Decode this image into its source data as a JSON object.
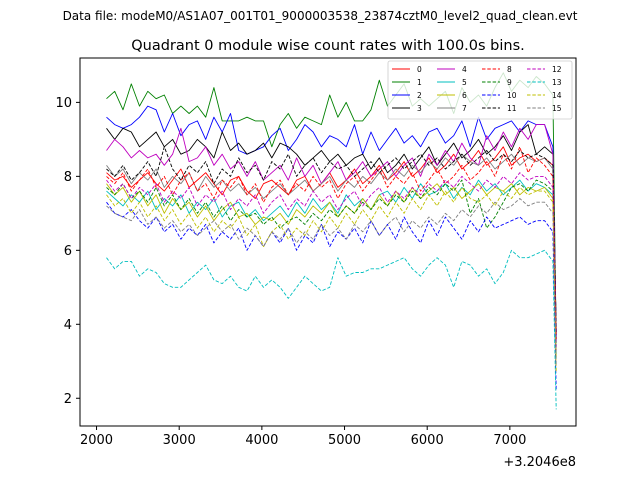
{
  "figure": {
    "suptitle": "Data file: modeM0/AS1A07_001T01_9000003538_23874cztM0_level2_quad_clean.evt",
    "title": "Quadrant 0 module wise count rates with 100.0s bins.",
    "offset_label": "+3.2046e8"
  },
  "chart_data": {
    "type": "line",
    "title": "Quadrant 0 module wise count rates with 100.0s bins.",
    "xlabel": "",
    "ylabel": "",
    "x_offset": 320460000,
    "xlim": [
      1800,
      7800
    ],
    "ylim": [
      1.25,
      11.2
    ],
    "xticks": [
      2000,
      3000,
      4000,
      5000,
      6000,
      7000
    ],
    "xtick_labels": [
      "2000",
      "3000",
      "4000",
      "5000",
      "6000",
      "7000"
    ],
    "yticks": [
      2,
      4,
      6,
      8,
      10
    ],
    "ytick_labels": [
      "2",
      "4",
      "6",
      "8",
      "10"
    ],
    "grid": false,
    "legend_position": "top-right",
    "x": [
      2120,
      2220,
      2320,
      2420,
      2520,
      2620,
      2720,
      2820,
      2920,
      3020,
      3120,
      3220,
      3320,
      3420,
      3520,
      3620,
      3720,
      3820,
      3920,
      4020,
      4120,
      4220,
      4320,
      4420,
      4520,
      4620,
      4720,
      4820,
      4920,
      5020,
      5120,
      5220,
      5320,
      5420,
      5520,
      5620,
      5720,
      5820,
      5920,
      6020,
      6120,
      6220,
      6320,
      6420,
      6520,
      6620,
      6720,
      6820,
      6920,
      7020,
      7120,
      7220,
      7320,
      7420,
      7520,
      7560
    ],
    "series": [
      {
        "name": "0",
        "color": "#ff0000",
        "dash": "solid",
        "values": [
          8.1,
          7.9,
          8.0,
          7.7,
          7.9,
          8.1,
          7.8,
          7.6,
          7.9,
          8.2,
          7.7,
          7.9,
          8.1,
          7.8,
          7.5,
          7.9,
          8.0,
          7.6,
          7.4,
          7.8,
          7.9,
          7.7,
          7.5,
          7.9,
          8.0,
          7.6,
          7.8,
          8.1,
          7.7,
          7.9,
          8.2,
          7.8,
          8.0,
          8.3,
          7.9,
          8.1,
          8.4,
          8.0,
          8.2,
          8.5,
          8.1,
          8.3,
          8.6,
          8.2,
          8.4,
          8.7,
          8.3,
          8.5,
          8.8,
          8.3,
          8.5,
          8.6,
          8.4,
          8.5,
          8.3,
          3.8
        ]
      },
      {
        "name": "1",
        "color": "#008000",
        "dash": "solid",
        "values": [
          10.1,
          10.3,
          9.8,
          10.5,
          9.9,
          10.3,
          10.1,
          10.2,
          9.7,
          9.9,
          9.7,
          9.9,
          9.6,
          10.4,
          9.5,
          9.5,
          9.5,
          9.6,
          9.5,
          9.5,
          8.8,
          9.4,
          9.7,
          9.3,
          9.6,
          9.5,
          9.4,
          10.2,
          9.6,
          10.0,
          9.5,
          9.5,
          9.8,
          10.6,
          9.9,
          10.2,
          10.5,
          9.9,
          10.1,
          9.9,
          10.1,
          10.3,
          9.7,
          10.4,
          10.0,
          10.2,
          9.9,
          10.4,
          10.8,
          10.3,
          10.6,
          10.4,
          10.7,
          10.5,
          10.2,
          3.5
        ]
      },
      {
        "name": "2",
        "color": "#0000ff",
        "dash": "solid",
        "values": [
          9.6,
          9.4,
          9.3,
          9.4,
          9.6,
          9.9,
          9.8,
          9.2,
          9.7,
          9.1,
          9.4,
          9.5,
          9.0,
          9.6,
          9.2,
          9.7,
          8.7,
          8.6,
          8.7,
          8.8,
          9.1,
          9.3,
          8.7,
          9.0,
          9.4,
          9.2,
          8.8,
          9.1,
          9.0,
          8.8,
          9.4,
          8.6,
          9.2,
          8.7,
          9.0,
          9.3,
          8.9,
          9.1,
          8.8,
          9.2,
          9.3,
          8.9,
          9.1,
          9.5,
          8.8,
          9.6,
          9.0,
          9.3,
          9.4,
          9.5,
          9.2,
          9.5,
          9.4,
          9.4,
          8.8,
          3.6
        ]
      },
      {
        "name": "3",
        "color": "#000000",
        "dash": "solid",
        "values": [
          9.3,
          9.0,
          9.3,
          9.2,
          8.8,
          9.0,
          9.2,
          8.8,
          9.0,
          8.6,
          8.7,
          9.0,
          8.8,
          8.5,
          9.2,
          8.7,
          8.9,
          8.6,
          8.7,
          8.9,
          8.5,
          8.9,
          8.8,
          8.6,
          8.3,
          8.5,
          8.7,
          8.4,
          8.6,
          8.3,
          8.5,
          8.6,
          8.2,
          8.5,
          8.1,
          8.3,
          8.6,
          8.2,
          8.5,
          8.8,
          8.3,
          8.6,
          8.9,
          8.5,
          8.7,
          9.0,
          8.6,
          8.8,
          9.1,
          8.7,
          9.2,
          9.4,
          8.6,
          8.8,
          8.6,
          3.7
        ]
      },
      {
        "name": "4",
        "color": "#bf00bf",
        "dash": "solid",
        "values": [
          8.7,
          9.0,
          8.8,
          8.5,
          8.7,
          8.5,
          8.6,
          8.3,
          8.6,
          9.3,
          8.4,
          8.5,
          8.8,
          8.3,
          8.6,
          8.2,
          8.4,
          8.0,
          8.4,
          7.9,
          8.1,
          8.3,
          7.9,
          8.5,
          8.0,
          8.3,
          7.8,
          8.1,
          8.4,
          7.9,
          8.1,
          8.4,
          8.0,
          8.2,
          8.4,
          8.0,
          8.3,
          8.5,
          8.0,
          8.6,
          8.3,
          8.7,
          8.4,
          8.9,
          8.5,
          8.3,
          9.1,
          8.7,
          9.2,
          8.8,
          9.3,
          9.0,
          9.4,
          9.4,
          8.6,
          3.7
        ]
      },
      {
        "name": "5",
        "color": "#00bfbf",
        "dash": "solid",
        "values": [
          7.6,
          7.4,
          7.2,
          7.5,
          7.3,
          7.6,
          7.1,
          7.4,
          7.2,
          7.5,
          7.0,
          7.3,
          7.1,
          7.4,
          6.9,
          7.2,
          7.3,
          6.9,
          7.1,
          6.8,
          7.0,
          7.2,
          6.9,
          7.3,
          7.0,
          7.4,
          7.1,
          7.3,
          7.0,
          7.5,
          7.2,
          7.4,
          7.1,
          7.5,
          7.6,
          7.3,
          7.7,
          7.4,
          7.8,
          7.5,
          7.6,
          7.8,
          7.4,
          7.7,
          7.5,
          7.9,
          7.6,
          7.8,
          7.5,
          7.7,
          7.9,
          7.6,
          7.8,
          7.7,
          7.5,
          3.2
        ]
      },
      {
        "name": "6",
        "color": "#bfbf00",
        "dash": "solid",
        "values": [
          7.8,
          7.5,
          7.7,
          7.3,
          7.6,
          7.2,
          7.5,
          7.0,
          7.4,
          7.1,
          7.3,
          6.9,
          7.2,
          6.8,
          7.1,
          7.3,
          6.9,
          7.0,
          6.7,
          6.9,
          6.8,
          7.0,
          6.7,
          7.1,
          6.9,
          7.2,
          7.0,
          7.3,
          6.9,
          7.2,
          7.0,
          7.4,
          7.1,
          7.5,
          7.2,
          7.6,
          7.3,
          7.7,
          7.4,
          7.6,
          7.8,
          7.5,
          7.7,
          7.4,
          7.6,
          7.8,
          7.5,
          7.7,
          7.6,
          7.8,
          7.5,
          7.7,
          7.6,
          7.7,
          7.4,
          3.1
        ]
      },
      {
        "name": "7",
        "color": "#808080",
        "dash": "solid",
        "values": [
          8.3,
          8.0,
          8.2,
          7.8,
          8.1,
          7.9,
          8.2,
          7.7,
          8.0,
          7.8,
          8.1,
          7.6,
          8.0,
          7.7,
          7.9,
          7.6,
          7.8,
          7.5,
          7.7,
          7.4,
          7.6,
          7.8,
          7.5,
          7.7,
          7.9,
          7.6,
          7.8,
          8.0,
          7.6,
          7.9,
          7.7,
          8.0,
          7.8,
          8.1,
          7.9,
          8.2,
          8.0,
          8.3,
          8.1,
          8.4,
          8.2,
          8.5,
          8.3,
          8.6,
          8.4,
          8.3,
          8.5,
          8.2,
          8.4,
          8.6,
          8.3,
          8.5,
          8.4,
          8.5,
          8.2,
          3.9
        ]
      },
      {
        "name": "8",
        "color": "#ff0000",
        "dash": "dashed",
        "values": [
          8.0,
          7.8,
          8.1,
          7.6,
          7.9,
          8.2,
          7.7,
          8.0,
          7.5,
          7.9,
          8.1,
          7.6,
          7.8,
          7.4,
          7.9,
          7.7,
          8.0,
          7.5,
          7.8,
          7.3,
          7.7,
          7.9,
          7.5,
          7.8,
          7.6,
          8.0,
          7.7,
          7.9,
          7.4,
          7.8,
          8.0,
          7.6,
          7.9,
          8.2,
          7.7,
          8.0,
          7.8,
          8.1,
          7.6,
          7.9,
          8.2,
          7.8,
          8.0,
          8.3,
          7.9,
          8.1,
          8.4,
          8.0,
          8.6,
          8.2,
          8.8,
          8.1,
          8.5,
          8.3,
          8.0,
          3.6
        ]
      },
      {
        "name": "9",
        "color": "#008000",
        "dash": "dashed",
        "values": [
          7.7,
          7.5,
          7.8,
          7.4,
          7.6,
          7.3,
          7.7,
          7.2,
          7.5,
          7.1,
          7.4,
          7.0,
          7.3,
          6.9,
          7.2,
          6.8,
          7.1,
          6.9,
          7.0,
          6.7,
          6.9,
          6.6,
          6.8,
          6.9,
          6.7,
          7.0,
          6.8,
          7.1,
          6.9,
          7.2,
          7.0,
          7.3,
          7.1,
          7.4,
          7.2,
          7.5,
          7.3,
          7.6,
          7.4,
          7.7,
          7.5,
          7.8,
          7.6,
          7.9,
          7.0,
          7.4,
          6.6,
          6.9,
          7.3,
          7.7,
          7.8,
          7.6,
          7.9,
          7.8,
          7.6,
          3.4
        ]
      },
      {
        "name": "10",
        "color": "#0000ff",
        "dash": "dashed",
        "values": [
          7.3,
          7.0,
          6.9,
          7.1,
          6.8,
          6.6,
          6.9,
          6.5,
          6.7,
          6.3,
          6.6,
          6.4,
          6.7,
          6.2,
          6.5,
          6.3,
          6.6,
          6.0,
          6.4,
          6.1,
          6.5,
          6.2,
          6.6,
          6.0,
          6.4,
          6.2,
          6.7,
          6.1,
          6.5,
          6.3,
          6.6,
          6.2,
          6.8,
          6.4,
          6.7,
          6.3,
          6.9,
          6.5,
          6.2,
          6.8,
          6.4,
          6.9,
          6.6,
          6.3,
          6.8,
          6.5,
          6.9,
          6.6,
          6.7,
          6.8,
          6.9,
          6.7,
          6.8,
          6.8,
          6.5,
          2.2
        ]
      },
      {
        "name": "11",
        "color": "#000000",
        "dash": "dashed",
        "values": [
          8.2,
          8.0,
          8.3,
          7.9,
          8.1,
          8.4,
          8.0,
          8.8,
          8.2,
          7.9,
          8.3,
          8.1,
          8.4,
          7.8,
          8.2,
          8.0,
          8.5,
          8.1,
          8.3,
          7.9,
          8.4,
          8.2,
          8.6,
          8.0,
          8.3,
          8.5,
          8.1,
          8.4,
          8.2,
          8.3,
          8.0,
          8.2,
          8.4,
          8.1,
          8.3,
          8.5,
          8.2,
          8.4,
          8.6,
          8.3,
          8.5,
          8.2,
          8.4,
          8.6,
          8.3,
          8.5,
          8.7,
          8.4,
          8.6,
          8.4,
          8.7,
          8.5,
          8.6,
          8.5,
          8.3,
          3.8
        ]
      },
      {
        "name": "12",
        "color": "#bf00bf",
        "dash": "dashed",
        "values": [
          7.9,
          7.6,
          7.8,
          7.4,
          7.7,
          7.5,
          7.8,
          7.3,
          7.6,
          7.4,
          7.7,
          7.2,
          7.5,
          7.3,
          7.6,
          7.1,
          7.4,
          7.2,
          7.5,
          7.0,
          7.3,
          7.5,
          7.1,
          7.4,
          7.2,
          7.6,
          7.3,
          7.5,
          7.1,
          7.4,
          7.6,
          7.2,
          7.5,
          7.7,
          7.3,
          7.6,
          7.4,
          7.7,
          7.5,
          7.8,
          7.6,
          7.9,
          7.7,
          8.0,
          7.8,
          7.6,
          7.9,
          7.7,
          8.0,
          7.8,
          8.1,
          7.9,
          8.0,
          8.0,
          7.7,
          3.3
        ]
      },
      {
        "name": "13",
        "color": "#00bfbf",
        "dash": "dashed",
        "values": [
          5.8,
          5.5,
          5.7,
          5.7,
          5.3,
          5.5,
          5.4,
          5.1,
          5.0,
          5.0,
          5.2,
          5.4,
          5.6,
          5.2,
          5.1,
          5.3,
          5.0,
          4.9,
          5.3,
          5.0,
          5.2,
          5.0,
          4.7,
          5.0,
          5.3,
          5.1,
          4.9,
          5.0,
          5.8,
          5.3,
          5.4,
          5.4,
          5.5,
          5.5,
          5.6,
          5.7,
          5.8,
          5.5,
          5.3,
          5.6,
          5.8,
          5.6,
          5.0,
          5.7,
          5.6,
          5.3,
          5.5,
          5.1,
          5.4,
          6.0,
          5.8,
          5.8,
          5.9,
          6.0,
          5.7,
          1.7
        ]
      },
      {
        "name": "14",
        "color": "#bfbf00",
        "dash": "dashed",
        "values": [
          7.5,
          7.2,
          7.4,
          7.0,
          7.3,
          6.9,
          7.2,
          6.8,
          7.1,
          6.7,
          7.0,
          6.6,
          6.9,
          6.5,
          6.8,
          6.6,
          6.9,
          6.4,
          6.7,
          6.1,
          6.5,
          6.7,
          6.3,
          6.6,
          6.4,
          6.8,
          6.5,
          6.9,
          6.6,
          7.0,
          6.7,
          7.1,
          6.8,
          7.2,
          6.9,
          7.3,
          7.0,
          7.4,
          7.1,
          7.5,
          7.2,
          7.6,
          7.3,
          7.7,
          7.4,
          7.3,
          7.5,
          7.2,
          7.6,
          7.4,
          7.7,
          7.5,
          7.6,
          7.6,
          7.3,
          2.7
        ]
      },
      {
        "name": "15",
        "color": "#808080",
        "dash": "dashed",
        "values": [
          7.2,
          7.0,
          6.9,
          6.8,
          7.1,
          6.7,
          6.9,
          6.6,
          6.8,
          6.5,
          6.7,
          6.4,
          6.6,
          6.8,
          6.5,
          6.7,
          6.3,
          6.6,
          6.4,
          6.1,
          6.5,
          6.3,
          6.6,
          6.2,
          6.5,
          6.3,
          6.7,
          6.4,
          6.6,
          6.3,
          6.7,
          6.5,
          6.8,
          6.4,
          6.7,
          6.9,
          6.5,
          6.8,
          6.6,
          6.9,
          6.7,
          7.0,
          6.8,
          7.1,
          6.9,
          7.2,
          7.0,
          7.3,
          7.1,
          7.2,
          7.4,
          7.2,
          7.3,
          7.3,
          7.0,
          2.9
        ]
      }
    ]
  }
}
